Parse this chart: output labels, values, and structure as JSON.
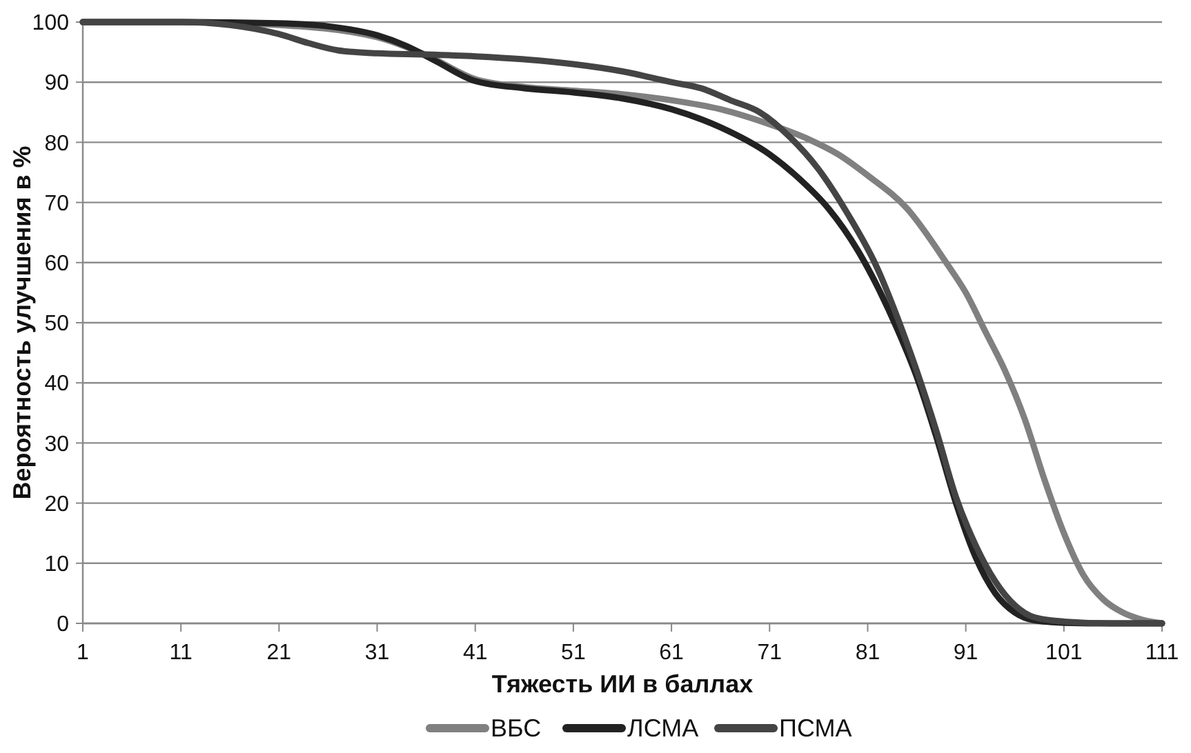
{
  "chart_data": {
    "type": "line",
    "xlabel": "Тяжесть ИИ в баллах",
    "ylabel": "Вероятность улучшения в %",
    "xlim": [
      1,
      111
    ],
    "xticks": [
      1,
      11,
      21,
      31,
      41,
      51,
      61,
      71,
      81,
      91,
      101,
      111
    ],
    "ylim": [
      0,
      100
    ],
    "yticks": [
      0,
      10,
      20,
      30,
      40,
      50,
      60,
      70,
      80,
      90,
      100
    ],
    "grid": "y",
    "legend": "bottom",
    "marker": "none",
    "line_style": "solid",
    "series": [
      {
        "name": "ВБС",
        "color": "#808080",
        "x": [
          1,
          11,
          21,
          31,
          36,
          41,
          46,
          51,
          56,
          61,
          66,
          71,
          75,
          78,
          81,
          85,
          89,
          91,
          93,
          95,
          97,
          99,
          101,
          103,
          105,
          107,
          109,
          111
        ],
        "values": [
          100,
          100,
          99.5,
          97.5,
          94.5,
          90.5,
          89.2,
          88.6,
          88,
          87,
          85.5,
          83,
          80.5,
          78,
          74.5,
          69,
          60,
          55,
          48.5,
          42,
          34,
          24,
          15,
          8,
          4,
          1.8,
          0.6,
          0
        ]
      },
      {
        "name": "ЛСМА",
        "color": "#222222",
        "x": [
          1,
          11,
          21,
          26,
          31,
          34,
          37,
          41,
          46,
          51,
          56,
          61,
          66,
          71,
          74,
          77,
          80,
          82,
          84,
          86,
          88,
          90,
          92,
          94,
          96,
          98,
          101,
          106,
          111
        ],
        "values": [
          100,
          100,
          99.8,
          99.3,
          97.8,
          96,
          93.5,
          90.2,
          89,
          88.3,
          87.3,
          85.5,
          82.5,
          78,
          74,
          69,
          62,
          56,
          49,
          41,
          31,
          20,
          11,
          5,
          1.8,
          0.5,
          0.1,
          0,
          0
        ]
      },
      {
        "name": "ПСМА",
        "color": "#444444",
        "x": [
          1,
          11,
          16,
          21,
          24,
          27,
          31,
          36,
          41,
          46,
          51,
          56,
          61,
          64,
          67,
          70,
          73,
          76,
          79,
          82,
          84,
          86,
          88,
          90,
          92,
          94,
          96,
          98,
          101,
          106,
          111
        ],
        "values": [
          100,
          100,
          99.5,
          98,
          96.5,
          95.3,
          94.8,
          94.6,
          94.3,
          93.8,
          93,
          91.8,
          90,
          89,
          87,
          85,
          81,
          75.5,
          68,
          59,
          51,
          42,
          32,
          21,
          13,
          7,
          3,
          1,
          0.3,
          0,
          0
        ]
      }
    ]
  }
}
